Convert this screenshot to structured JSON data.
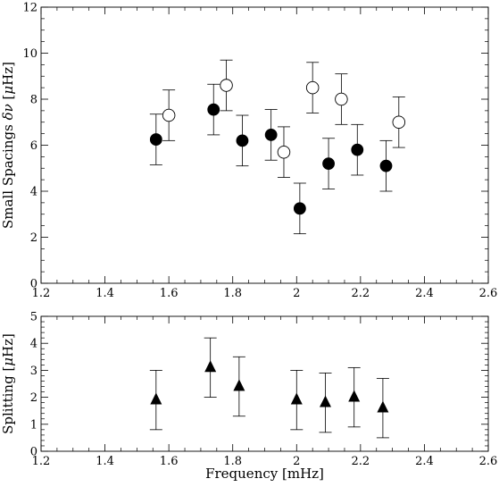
{
  "chart_data": [
    {
      "type": "scatter",
      "title": "",
      "xlabel": "",
      "ylabel_parts": [
        "Small Spacings ",
        "δν",
        " [",
        "μ",
        "Hz]"
      ],
      "xlim": [
        1.2,
        2.6
      ],
      "ylim": [
        0,
        12
      ],
      "xticks": [
        1.2,
        1.4,
        1.6,
        1.8,
        2.0,
        2.2,
        2.4,
        2.6
      ],
      "xtick_labels": [
        "1.2",
        "1.4",
        "1.6",
        "1.8",
        "2",
        "2.2",
        "2.4",
        "2.6"
      ],
      "yticks": [
        0,
        2,
        4,
        6,
        8,
        10,
        12
      ],
      "ytick_labels": [
        "0",
        "2",
        "4",
        "6",
        "8",
        "10",
        "12"
      ],
      "grid": false,
      "series": [
        {
          "marker": "filled-circle",
          "color": "#000000",
          "x": [
            1.56,
            1.74,
            1.83,
            1.92,
            2.01,
            2.1,
            2.19,
            2.28
          ],
          "y": [
            6.25,
            7.55,
            6.2,
            6.45,
            3.25,
            5.2,
            5.8,
            5.1
          ],
          "yerr": [
            1.1,
            1.1,
            1.1,
            1.1,
            1.1,
            1.1,
            1.1,
            1.1
          ]
        },
        {
          "marker": "open-circle",
          "color": "#000000",
          "x": [
            1.6,
            1.78,
            1.96,
            2.05,
            2.14,
            2.32
          ],
          "y": [
            7.3,
            8.6,
            5.7,
            8.5,
            8.0,
            7.0
          ],
          "yerr": [
            1.1,
            1.1,
            1.1,
            1.1,
            1.1,
            1.1
          ]
        }
      ]
    },
    {
      "type": "scatter",
      "title": "",
      "xlabel": "Frequency [mHz]",
      "ylabel_parts": [
        "Splitting [",
        "μ",
        "Hz]"
      ],
      "xlim": [
        1.2,
        2.6
      ],
      "ylim": [
        0,
        5
      ],
      "xticks": [
        1.2,
        1.4,
        1.6,
        1.8,
        2.0,
        2.2,
        2.4,
        2.6
      ],
      "xtick_labels": [
        "1.2",
        "1.4",
        "1.6",
        "1.8",
        "2",
        "2.2",
        "2.4",
        "2.6"
      ],
      "yticks": [
        0,
        1,
        2,
        3,
        4,
        5
      ],
      "ytick_labels": [
        "0",
        "1",
        "2",
        "3",
        "4",
        "5"
      ],
      "grid": false,
      "series": [
        {
          "marker": "filled-triangle",
          "color": "#000000",
          "x": [
            1.56,
            1.73,
            1.82,
            2.0,
            2.09,
            2.18,
            2.27
          ],
          "y": [
            1.9,
            3.1,
            2.4,
            1.9,
            1.8,
            2.0,
            1.6
          ],
          "yerr": [
            1.1,
            1.1,
            1.1,
            1.1,
            1.1,
            1.1,
            1.1
          ]
        }
      ]
    }
  ]
}
